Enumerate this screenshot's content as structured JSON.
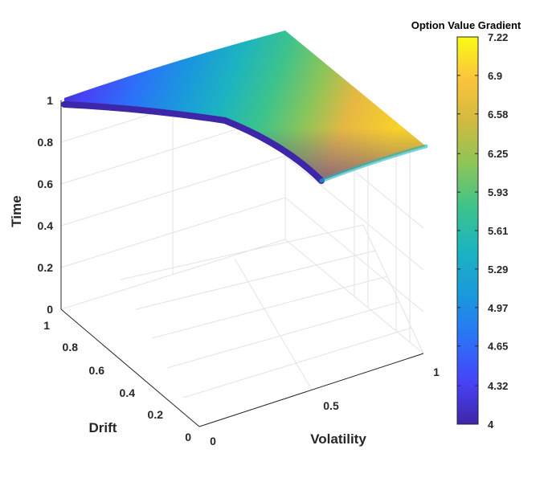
{
  "chart_data": {
    "type": "surface3d",
    "title": "",
    "xlabel": "Volatility",
    "ylabel": "Drift",
    "zlabel": "Time",
    "xlim": [
      0,
      1
    ],
    "ylim": [
      0,
      1
    ],
    "zlim": [
      0,
      1
    ],
    "x_ticks": [
      "0",
      "0.5",
      "1"
    ],
    "y_ticks": [
      "0",
      "0.2",
      "0.4",
      "0.6",
      "0.8",
      "1"
    ],
    "z_ticks": [
      "0",
      "0.2",
      "0.4",
      "0.6",
      "0.8",
      "1"
    ],
    "grid": true,
    "surface": {
      "description_points": [
        {
          "volatility": 0,
          "drift": 1,
          "time": 1,
          "value": 4.0
        },
        {
          "volatility": 0,
          "drift": 0,
          "time": 1,
          "value": 4.3
        },
        {
          "volatility": 1,
          "drift": 1,
          "time": 1,
          "value": 6.9
        },
        {
          "volatility": 1,
          "drift": 0,
          "time": 1,
          "value": 7.22
        }
      ]
    },
    "colorbar": {
      "title": "Option Value Gradient",
      "min": 4,
      "max": 7.22,
      "ticks": [
        "7.22",
        "6.9",
        "6.58",
        "6.25",
        "5.93",
        "5.61",
        "5.29",
        "4.97",
        "4.65",
        "4.32",
        "4"
      ],
      "colormap": [
        "#3e26a8",
        "#4743f8",
        "#2b72f8",
        "#1a98dd",
        "#1cb4c0",
        "#3cc38c",
        "#8cc559",
        "#d0ba3f",
        "#fcc33c",
        "#f9fb15"
      ]
    }
  }
}
